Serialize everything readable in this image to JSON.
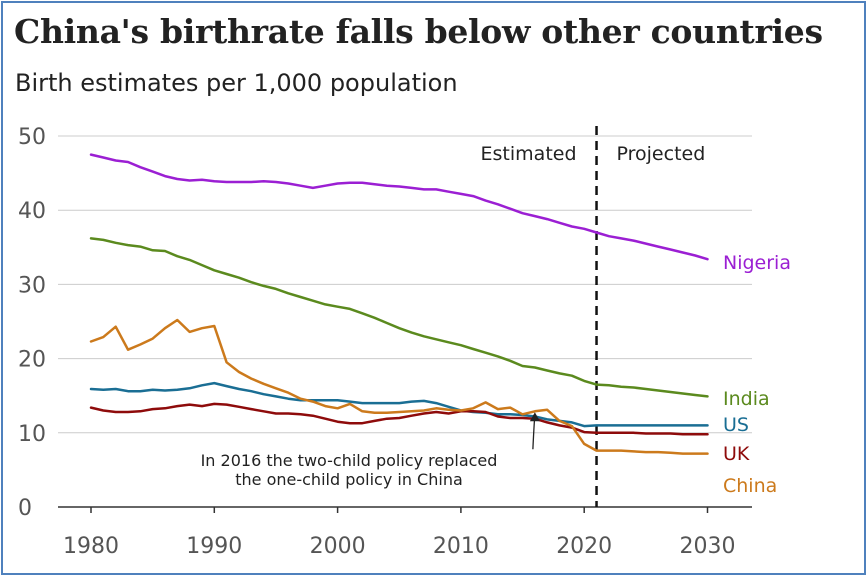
{
  "header": {
    "title": "China's birthrate falls below other countries",
    "subtitle": "Birth estimates per 1,000 population"
  },
  "chart_data": {
    "type": "line",
    "title": "China's birthrate falls below other countries",
    "subtitle": "Birth estimates per 1,000 population",
    "xlabel": "",
    "ylabel": "",
    "xlim": [
      1978,
      2034
    ],
    "ylim": [
      0,
      50
    ],
    "x_ticks": [
      1980,
      1990,
      2000,
      2010,
      2020,
      2030
    ],
    "y_ticks": [
      0,
      10,
      20,
      30,
      40,
      50
    ],
    "grid": "horizontal",
    "divider": {
      "x": 2021,
      "left_label": "Estimated",
      "right_label": "Projected"
    },
    "annotation": {
      "lines": [
        "In 2016 the two-child policy replaced",
        "the one-child policy in China"
      ],
      "arrow_to": [
        2016,
        12.9
      ]
    },
    "series": [
      {
        "name": "Nigeria",
        "color": "#9b1fd3",
        "x": [
          1980,
          1981,
          1982,
          1983,
          1984,
          1985,
          1986,
          1987,
          1988,
          1989,
          1990,
          1991,
          1992,
          1993,
          1994,
          1995,
          1996,
          1997,
          1998,
          1999,
          2000,
          2001,
          2002,
          2003,
          2004,
          2005,
          2006,
          2007,
          2008,
          2009,
          2010,
          2011,
          2012,
          2013,
          2014,
          2015,
          2016,
          2017,
          2018,
          2019,
          2020,
          2021,
          2022,
          2023,
          2024,
          2025,
          2026,
          2027,
          2028,
          2029,
          2030
        ],
        "values": [
          47.5,
          47.1,
          46.7,
          46.5,
          45.8,
          45.2,
          44.6,
          44.2,
          44.0,
          44.1,
          43.9,
          43.8,
          43.8,
          43.8,
          43.9,
          43.8,
          43.6,
          43.3,
          43.0,
          43.3,
          43.6,
          43.7,
          43.7,
          43.5,
          43.3,
          43.2,
          43.0,
          42.8,
          42.8,
          42.5,
          42.2,
          41.9,
          41.3,
          40.8,
          40.2,
          39.6,
          39.2,
          38.8,
          38.3,
          37.8,
          37.5,
          37.0,
          36.5,
          36.2,
          35.9,
          35.5,
          35.1,
          34.7,
          34.3,
          33.9,
          33.4
        ]
      },
      {
        "name": "India",
        "color": "#5b8a1e",
        "x": [
          1980,
          1981,
          1982,
          1983,
          1984,
          1985,
          1986,
          1987,
          1988,
          1989,
          1990,
          1991,
          1992,
          1993,
          1994,
          1995,
          1996,
          1997,
          1998,
          1999,
          2000,
          2001,
          2002,
          2003,
          2004,
          2005,
          2006,
          2007,
          2008,
          2009,
          2010,
          2011,
          2012,
          2013,
          2014,
          2015,
          2016,
          2017,
          2018,
          2019,
          2020,
          2021,
          2022,
          2023,
          2024,
          2025,
          2026,
          2027,
          2028,
          2029,
          2030
        ],
        "values": [
          36.2,
          36.0,
          35.6,
          35.3,
          35.1,
          34.6,
          34.5,
          33.8,
          33.3,
          32.6,
          31.9,
          31.4,
          30.9,
          30.3,
          29.8,
          29.4,
          28.8,
          28.3,
          27.8,
          27.3,
          27.0,
          26.7,
          26.1,
          25.5,
          24.8,
          24.1,
          23.5,
          23.0,
          22.6,
          22.2,
          21.8,
          21.3,
          20.8,
          20.3,
          19.7,
          19.0,
          18.8,
          18.4,
          18.0,
          17.7,
          17.0,
          16.5,
          16.4,
          16.2,
          16.1,
          15.9,
          15.7,
          15.5,
          15.3,
          15.1,
          14.9
        ]
      },
      {
        "name": "US",
        "color": "#1a6e94",
        "x": [
          1980,
          1981,
          1982,
          1983,
          1984,
          1985,
          1986,
          1987,
          1988,
          1989,
          1990,
          1991,
          1992,
          1993,
          1994,
          1995,
          1996,
          1997,
          1998,
          1999,
          2000,
          2001,
          2002,
          2003,
          2004,
          2005,
          2006,
          2007,
          2008,
          2009,
          2010,
          2011,
          2012,
          2013,
          2014,
          2015,
          2016,
          2017,
          2018,
          2019,
          2020,
          2021,
          2022,
          2023,
          2024,
          2025,
          2026,
          2027,
          2028,
          2029,
          2030
        ],
        "values": [
          15.9,
          15.8,
          15.9,
          15.6,
          15.6,
          15.8,
          15.7,
          15.8,
          16.0,
          16.4,
          16.7,
          16.3,
          15.9,
          15.6,
          15.2,
          14.9,
          14.6,
          14.4,
          14.4,
          14.4,
          14.4,
          14.2,
          14.0,
          14.0,
          14.0,
          14.0,
          14.2,
          14.3,
          14.0,
          13.5,
          13.0,
          12.8,
          12.7,
          12.5,
          12.5,
          12.4,
          12.2,
          11.8,
          11.6,
          11.4,
          10.9,
          11.0,
          11.0,
          11.0,
          11.0,
          11.0,
          11.0,
          11.0,
          11.0,
          11.0,
          11.0
        ]
      },
      {
        "name": "UK",
        "color": "#8e0b0b",
        "x": [
          1980,
          1981,
          1982,
          1983,
          1984,
          1985,
          1986,
          1987,
          1988,
          1989,
          1990,
          1991,
          1992,
          1993,
          1994,
          1995,
          1996,
          1997,
          1998,
          1999,
          2000,
          2001,
          2002,
          2003,
          2004,
          2005,
          2006,
          2007,
          2008,
          2009,
          2010,
          2011,
          2012,
          2013,
          2014,
          2015,
          2016,
          2017,
          2018,
          2019,
          2020,
          2021,
          2022,
          2023,
          2024,
          2025,
          2026,
          2027,
          2028,
          2029,
          2030
        ],
        "values": [
          13.4,
          13.0,
          12.8,
          12.8,
          12.9,
          13.2,
          13.3,
          13.6,
          13.8,
          13.6,
          13.9,
          13.8,
          13.5,
          13.2,
          12.9,
          12.6,
          12.6,
          12.5,
          12.3,
          11.9,
          11.5,
          11.3,
          11.3,
          11.6,
          11.9,
          12.0,
          12.3,
          12.6,
          12.8,
          12.6,
          12.9,
          12.9,
          12.8,
          12.2,
          12.0,
          12.0,
          11.9,
          11.4,
          11.0,
          10.7,
          10.1,
          10.0,
          10.0,
          10.0,
          10.0,
          9.9,
          9.9,
          9.9,
          9.8,
          9.8,
          9.8
        ]
      },
      {
        "name": "China",
        "color": "#cc7a1c",
        "x": [
          1980,
          1981,
          1982,
          1983,
          1984,
          1985,
          1986,
          1987,
          1988,
          1989,
          1990,
          1991,
          1992,
          1993,
          1994,
          1995,
          1996,
          1997,
          1998,
          1999,
          2000,
          2001,
          2002,
          2003,
          2004,
          2005,
          2006,
          2007,
          2008,
          2009,
          2010,
          2011,
          2012,
          2013,
          2014,
          2015,
          2016,
          2017,
          2018,
          2019,
          2020,
          2021,
          2022,
          2023,
          2024,
          2025,
          2026,
          2027,
          2028,
          2029,
          2030
        ],
        "values": [
          22.3,
          22.9,
          24.3,
          21.2,
          21.9,
          22.7,
          24.1,
          25.2,
          23.6,
          24.1,
          24.4,
          19.5,
          18.2,
          17.3,
          16.6,
          16.0,
          15.4,
          14.6,
          14.2,
          13.6,
          13.3,
          13.9,
          12.9,
          12.7,
          12.7,
          12.8,
          12.9,
          13.0,
          13.3,
          13.1,
          13.0,
          13.3,
          14.1,
          13.2,
          13.4,
          12.5,
          12.9,
          13.1,
          11.6,
          10.9,
          8.5,
          7.6,
          7.6,
          7.6,
          7.5,
          7.4,
          7.4,
          7.3,
          7.2,
          7.2,
          7.2
        ]
      }
    ]
  }
}
